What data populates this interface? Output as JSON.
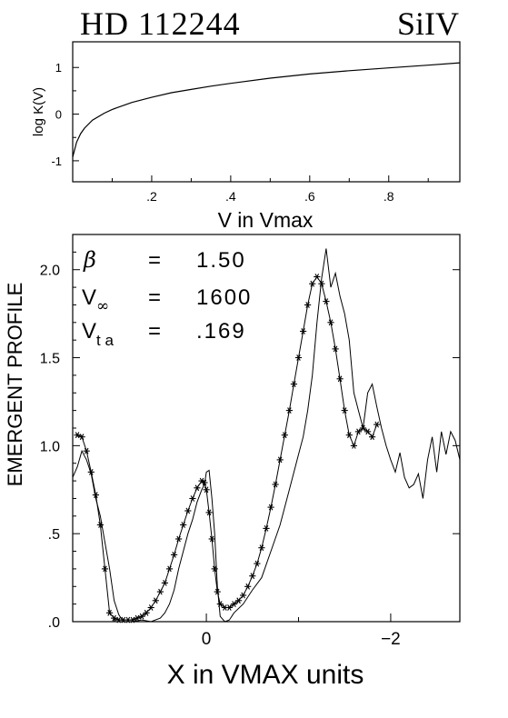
{
  "header": {
    "star": "HD 112244",
    "ion": "SiIV"
  },
  "chart_data": [
    {
      "type": "line",
      "xlabel": "V in Vmax",
      "ylabel": "log K(V)",
      "xlim": [
        0.0,
        0.98
      ],
      "ylim": [
        -1.45,
        1.55
      ],
      "x_ticklabels": [
        ".2",
        ".4",
        ".6",
        ".8"
      ],
      "x_tickvalues": [
        0.2,
        0.4,
        0.6,
        0.8
      ],
      "y_ticklabels": [
        "-1",
        "0",
        "1"
      ],
      "y_tickvalues": [
        -1,
        0,
        1
      ],
      "grid": false,
      "series": [
        {
          "x": [
            0.0,
            0.01,
            0.02,
            0.03,
            0.05,
            0.08,
            0.1,
            0.15,
            0.2,
            0.25,
            0.3,
            0.35,
            0.4,
            0.5,
            0.6,
            0.7,
            0.8,
            0.9,
            0.98
          ],
          "values": [
            -0.92,
            -0.6,
            -0.42,
            -0.3,
            -0.13,
            0.02,
            0.1,
            0.25,
            0.36,
            0.46,
            0.53,
            0.6,
            0.66,
            0.77,
            0.86,
            0.93,
            0.99,
            1.05,
            1.1
          ]
        }
      ]
    },
    {
      "type": "line",
      "xlabel": "X in VMAX units",
      "ylabel": "EMERGENT PROFILE",
      "xlim": [
        1.45,
        -2.75
      ],
      "ylim": [
        0.0,
        2.2
      ],
      "x_ticklabels": [
        "0",
        "−2"
      ],
      "x_tickvalues": [
        0,
        -2
      ],
      "y_ticklabels": [
        ".0",
        ".5",
        "1.0",
        "1.5",
        "2.0"
      ],
      "y_tickvalues": [
        0.0,
        0.5,
        1.0,
        1.5,
        2.0
      ],
      "grid": false,
      "annotations": [
        {
          "symbol": "β",
          "sub": "",
          "eq": "=",
          "value": "1.50"
        },
        {
          "symbol": "V",
          "sub": "∞",
          "eq": "=",
          "value": "1600"
        },
        {
          "symbol": "V",
          "sub": "t a",
          "eq": "=",
          "value": ".169"
        }
      ],
      "series": [
        {
          "style": "line",
          "x": [
            1.45,
            1.4,
            1.35,
            1.3,
            1.25,
            1.2,
            1.15,
            1.1,
            1.05,
            1.0,
            0.95,
            0.9,
            0.8,
            0.7,
            0.6,
            0.5,
            0.45,
            0.4,
            0.35,
            0.3,
            0.25,
            0.2,
            0.15,
            0.1,
            0.05,
            0.02,
            0.0,
            -0.03,
            -0.06,
            -0.09,
            -0.12,
            -0.15,
            -0.2,
            -0.25,
            -0.3,
            -0.4,
            -0.5,
            -0.6,
            -0.7,
            -0.8,
            -0.9,
            -1.0,
            -1.05,
            -1.1,
            -1.15,
            -1.2,
            -1.25,
            -1.3,
            -1.35,
            -1.4,
            -1.45,
            -1.5,
            -1.55,
            -1.6,
            -1.65,
            -1.7,
            -1.75,
            -1.8,
            -1.85,
            -1.9,
            -1.95,
            -2.0,
            -2.05,
            -2.1,
            -2.15,
            -2.2,
            -2.25,
            -2.3,
            -2.35,
            -2.4,
            -2.45,
            -2.5,
            -2.55,
            -2.6,
            -2.65,
            -2.7,
            -2.75
          ],
          "values": [
            0.82,
            0.88,
            0.97,
            0.92,
            0.84,
            0.7,
            0.6,
            0.45,
            0.3,
            0.12,
            0.04,
            0.0,
            0.0,
            0.01,
            0.0,
            0.02,
            0.05,
            0.1,
            0.18,
            0.3,
            0.4,
            0.5,
            0.58,
            0.68,
            0.75,
            0.78,
            0.85,
            0.86,
            0.7,
            0.5,
            0.2,
            0.03,
            0.0,
            0.01,
            0.05,
            0.1,
            0.18,
            0.25,
            0.4,
            0.55,
            0.75,
            0.95,
            1.05,
            1.2,
            1.4,
            1.7,
            1.95,
            2.12,
            1.9,
            1.98,
            1.85,
            1.75,
            1.6,
            1.3,
            1.2,
            1.1,
            1.3,
            1.35,
            1.22,
            1.1,
            1.0,
            0.92,
            0.85,
            0.96,
            0.82,
            0.76,
            0.78,
            0.84,
            0.7,
            0.92,
            1.05,
            0.85,
            1.08,
            0.95,
            1.08,
            1.03,
            0.92
          ]
        },
        {
          "style": "stars",
          "x": [
            1.4,
            1.35,
            1.3,
            1.25,
            1.2,
            1.15,
            1.1,
            1.05,
            1.0,
            0.95,
            0.9,
            0.85,
            0.8,
            0.75,
            0.7,
            0.65,
            0.6,
            0.55,
            0.5,
            0.45,
            0.4,
            0.35,
            0.3,
            0.25,
            0.2,
            0.15,
            0.1,
            0.05,
            0.02,
            0.0,
            -0.03,
            -0.06,
            -0.09,
            -0.12,
            -0.15,
            -0.2,
            -0.25,
            -0.3,
            -0.35,
            -0.4,
            -0.45,
            -0.5,
            -0.55,
            -0.6,
            -0.65,
            -0.7,
            -0.75,
            -0.8,
            -0.85,
            -0.9,
            -0.95,
            -1.0,
            -1.05,
            -1.1,
            -1.15,
            -1.2,
            -1.25,
            -1.3,
            -1.35,
            -1.4,
            -1.45,
            -1.5,
            -1.55,
            -1.6,
            -1.65,
            -1.7,
            -1.75,
            -1.8,
            -1.85
          ],
          "values": [
            1.06,
            1.05,
            0.97,
            0.85,
            0.72,
            0.55,
            0.3,
            0.05,
            0.02,
            0.01,
            0.01,
            0.01,
            0.01,
            0.02,
            0.03,
            0.05,
            0.08,
            0.12,
            0.17,
            0.22,
            0.3,
            0.38,
            0.47,
            0.55,
            0.63,
            0.7,
            0.76,
            0.8,
            0.79,
            0.75,
            0.62,
            0.47,
            0.3,
            0.17,
            0.1,
            0.08,
            0.08,
            0.1,
            0.12,
            0.15,
            0.2,
            0.26,
            0.33,
            0.42,
            0.53,
            0.65,
            0.78,
            0.92,
            1.06,
            1.2,
            1.35,
            1.5,
            1.65,
            1.8,
            1.92,
            1.96,
            1.92,
            1.82,
            1.7,
            1.55,
            1.38,
            1.2,
            1.06,
            1.0,
            1.08,
            1.1,
            1.08,
            1.05,
            1.12
          ]
        }
      ]
    }
  ]
}
